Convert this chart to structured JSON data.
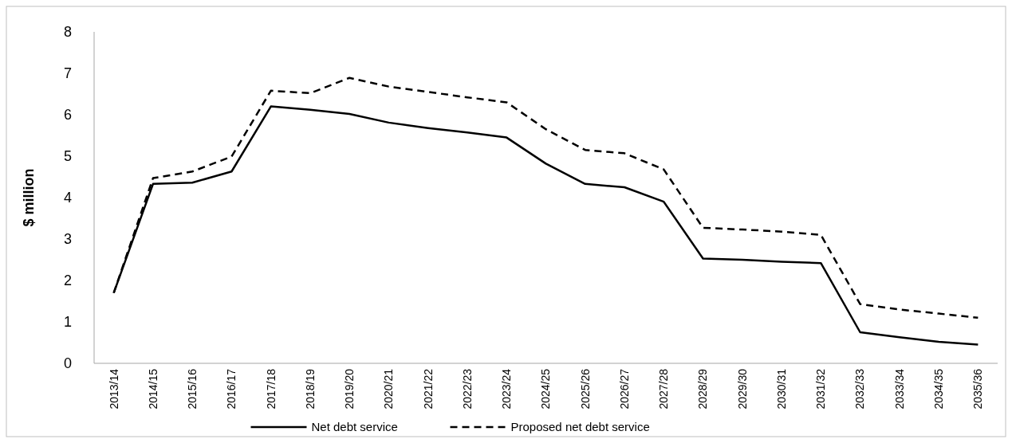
{
  "chart_data": {
    "type": "line",
    "ylabel": "$ million",
    "categories": [
      "2013/14",
      "2014/15",
      "2015/16",
      "2016/17",
      "2017/18",
      "2018/19",
      "2019/20",
      "2020/21",
      "2021/22",
      "2022/23",
      "2023/24",
      "2024/25",
      "2025/26",
      "2026/27",
      "2027/28",
      "2028/29",
      "2029/30",
      "2030/31",
      "2031/32",
      "2032/33",
      "2033/34",
      "2034/35",
      "2035/36"
    ],
    "series": [
      {
        "name": "Net debt service",
        "color": "#000000",
        "line_style": "solid",
        "values": [
          1.7,
          4.33,
          4.36,
          4.63,
          6.2,
          6.12,
          6.02,
          5.81,
          5.68,
          5.57,
          5.45,
          4.82,
          4.33,
          4.25,
          3.9,
          2.53,
          2.5,
          2.45,
          2.42,
          0.75,
          0.63,
          0.52,
          0.45
        ]
      },
      {
        "name": "Proposed net debt service",
        "color": "#000000",
        "line_style": "dashed",
        "values": [
          1.7,
          4.47,
          4.63,
          4.99,
          6.58,
          6.52,
          6.89,
          6.68,
          6.55,
          6.42,
          6.3,
          5.65,
          5.15,
          5.07,
          4.68,
          3.27,
          3.23,
          3.18,
          3.1,
          1.43,
          1.3,
          1.2,
          1.1
        ]
      }
    ],
    "ylim": [
      0,
      8
    ],
    "yticks": [
      0,
      1,
      2,
      3,
      4,
      5,
      6,
      7,
      8
    ],
    "grid": false,
    "legend": "bottom",
    "marker": "none"
  }
}
